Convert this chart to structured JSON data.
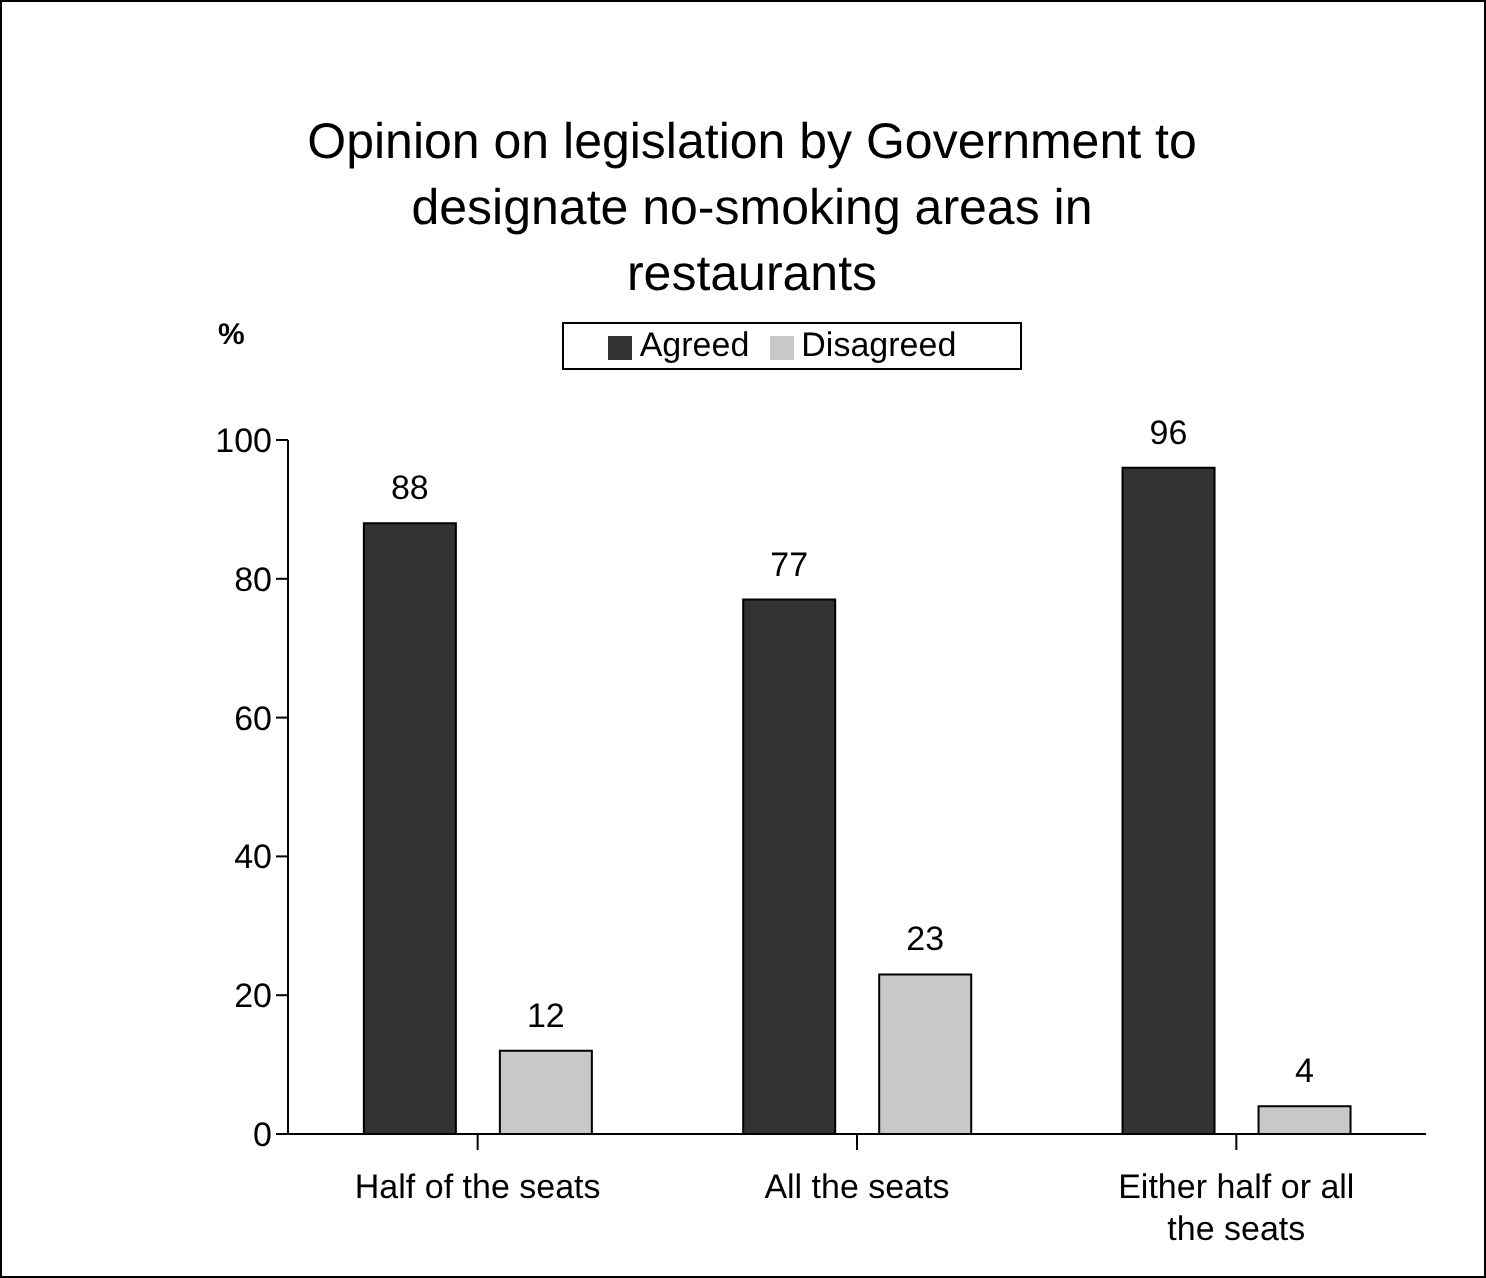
{
  "chart_data": {
    "type": "bar",
    "title": "Opinion on legislation by Government to designate no-smoking areas in restaurants",
    "ylabel": "%",
    "categories": [
      "Half of the seats",
      "All the seats",
      "Either half or all the seats"
    ],
    "series": [
      {
        "name": "Agreed",
        "color": "#333333",
        "values": [
          88,
          77,
          96
        ]
      },
      {
        "name": "Disagreed",
        "color": "#c8c8c8",
        "values": [
          12,
          23,
          4
        ]
      }
    ],
    "ylim": [
      0,
      100
    ],
    "yticks": [
      0,
      20,
      40,
      60,
      80,
      100
    ],
    "data_labels": true,
    "legend": "top",
    "grid": false
  }
}
